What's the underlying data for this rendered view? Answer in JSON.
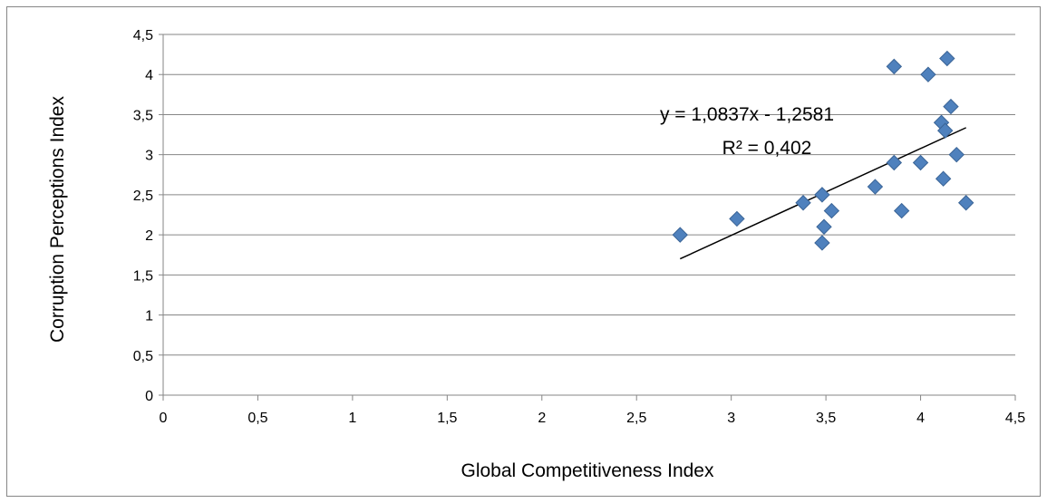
{
  "chart_data": {
    "type": "scatter",
    "xlabel": "Global Competitiveness Index",
    "ylabel": "Corruption Perceptions Index",
    "xlim": [
      0,
      4.5
    ],
    "ylim": [
      0,
      4.5
    ],
    "xticks": [
      "0",
      "0,5",
      "1",
      "1,5",
      "2",
      "2,5",
      "3",
      "3,5",
      "4",
      "4,5"
    ],
    "yticks": [
      "0",
      "0,5",
      "1",
      "1,5",
      "2",
      "2,5",
      "3",
      "3,5",
      "4",
      "4,5"
    ],
    "grid": "horizontal",
    "marker_color": "#4f81bd",
    "marker_edge": "#3a6496",
    "points": [
      {
        "x": 2.73,
        "y": 2.0
      },
      {
        "x": 3.03,
        "y": 2.2
      },
      {
        "x": 3.38,
        "y": 2.4
      },
      {
        "x": 3.48,
        "y": 2.5
      },
      {
        "x": 3.49,
        "y": 2.1
      },
      {
        "x": 3.48,
        "y": 1.9
      },
      {
        "x": 3.53,
        "y": 2.3
      },
      {
        "x": 3.76,
        "y": 2.6
      },
      {
        "x": 3.86,
        "y": 2.9
      },
      {
        "x": 3.86,
        "y": 4.1
      },
      {
        "x": 3.9,
        "y": 2.3
      },
      {
        "x": 4.0,
        "y": 2.9
      },
      {
        "x": 4.04,
        "y": 4.0
      },
      {
        "x": 4.11,
        "y": 3.4
      },
      {
        "x": 4.12,
        "y": 2.7
      },
      {
        "x": 4.13,
        "y": 3.3
      },
      {
        "x": 4.14,
        "y": 4.2
      },
      {
        "x": 4.16,
        "y": 3.6
      },
      {
        "x": 4.19,
        "y": 3.0
      },
      {
        "x": 4.24,
        "y": 2.4
      }
    ],
    "trendline": {
      "slope": 1.0837,
      "intercept": -1.2581,
      "x_range": [
        2.73,
        4.24
      ],
      "equation": "y = 1,0837x - 1,2581",
      "r_squared": "R² = 0,402"
    }
  }
}
